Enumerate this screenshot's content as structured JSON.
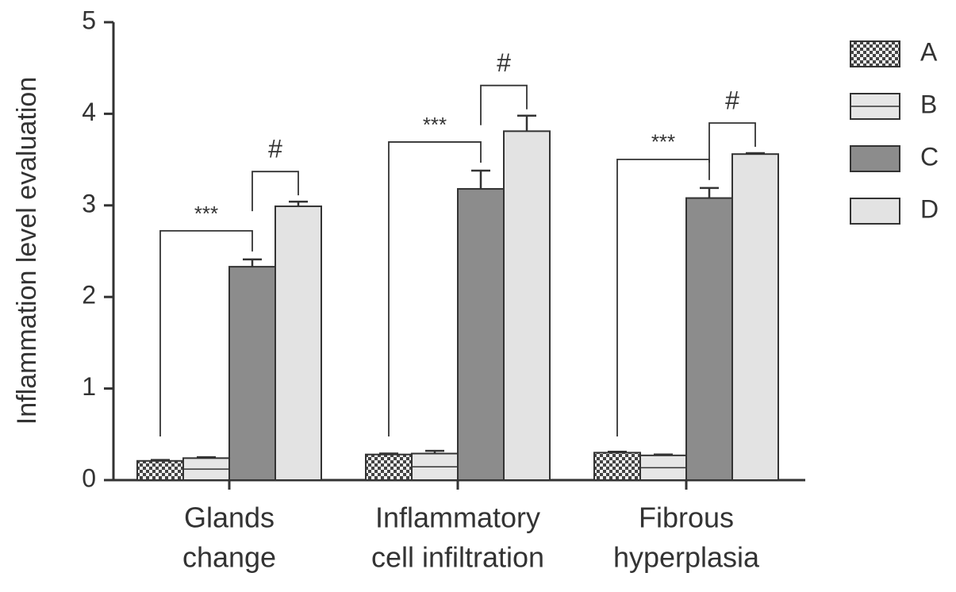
{
  "chart_data": {
    "type": "bar",
    "y_label": "Inflammation level evaluation",
    "categories": [
      [
        "Glands",
        "change"
      ],
      [
        "Inflammatory",
        "cell infiltration"
      ],
      [
        "Fibrous",
        "hyperplasia"
      ]
    ],
    "series": [
      {
        "name": "A",
        "color": "#555555",
        "pattern": "checker",
        "values": [
          0.21,
          0.28,
          0.3
        ],
        "errors": [
          0.01,
          0.01,
          0.01
        ]
      },
      {
        "name": "B",
        "color": "#e6e6e6",
        "pattern": "line",
        "values": [
          0.24,
          0.29,
          0.27
        ],
        "errors": [
          0.01,
          0.03,
          0.01
        ]
      },
      {
        "name": "C",
        "color": "#8c8c8c",
        "values": [
          2.33,
          3.18,
          3.08
        ],
        "errors": [
          0.08,
          0.2,
          0.11
        ]
      },
      {
        "name": "D",
        "color": "#e3e3e3",
        "values": [
          2.99,
          3.81,
          3.56
        ],
        "errors": [
          0.05,
          0.17,
          0.01
        ]
      }
    ],
    "annotations": [
      "***",
      "#",
      "***",
      "#",
      "***",
      "#"
    ],
    "ylim": [
      0,
      5
    ],
    "yticks": [
      0,
      1,
      2,
      3,
      4,
      5
    ]
  }
}
